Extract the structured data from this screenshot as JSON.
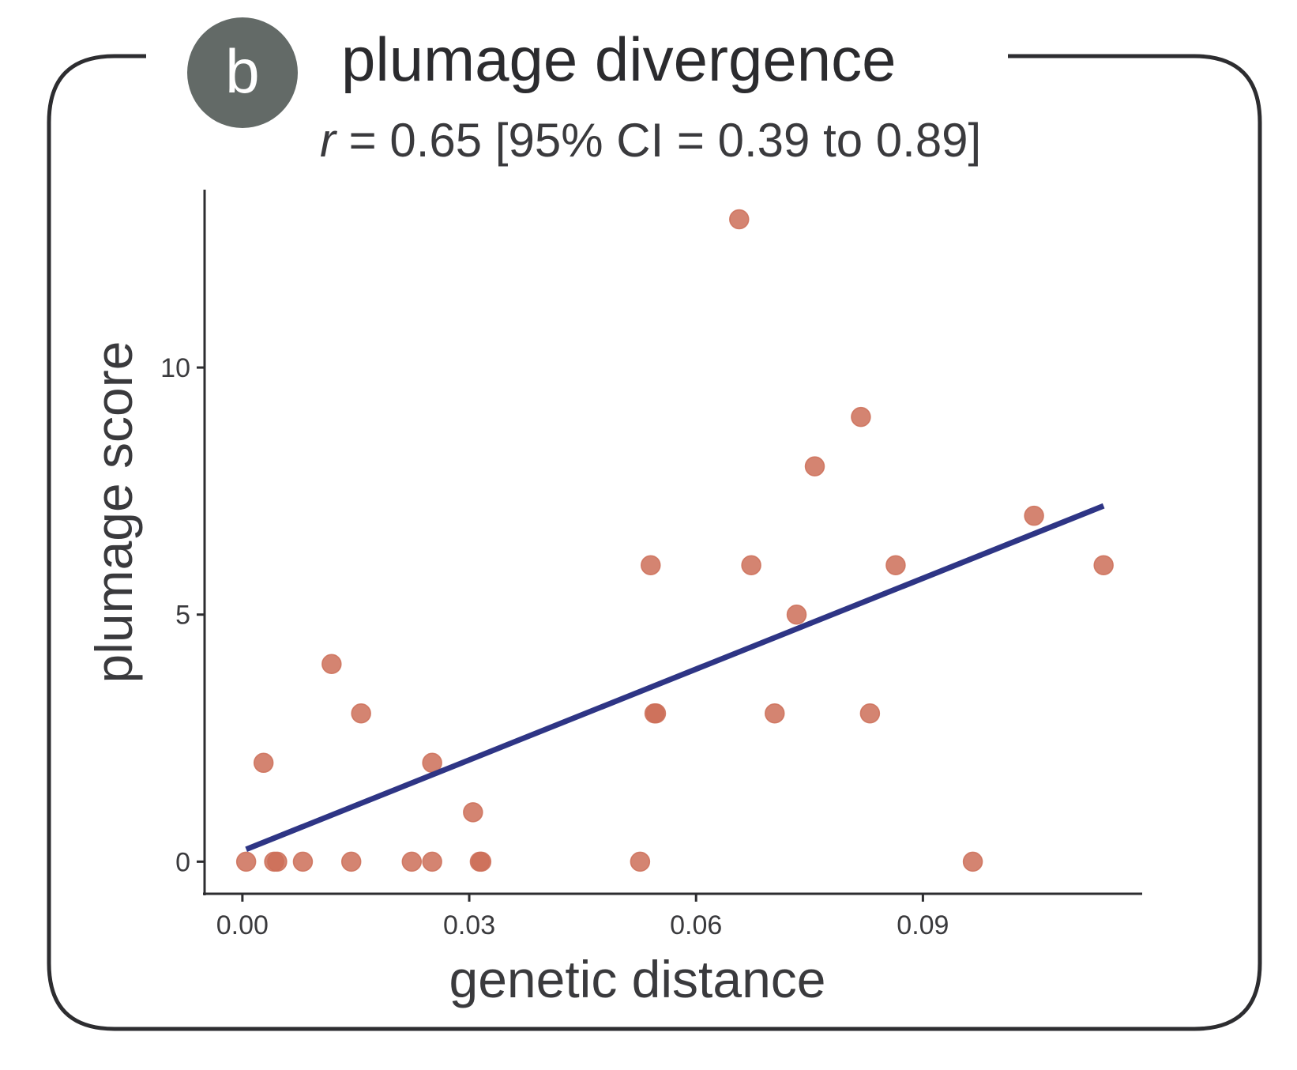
{
  "panel": {
    "badge_letter": "b",
    "title": "plumage divergence",
    "subtitle_r": "r",
    "subtitle_rest": " = 0.65 [95% CI = 0.39 to 0.89]"
  },
  "colors": {
    "frame": "#2d2d30",
    "badge": "#636a67",
    "point": "#cd6f58",
    "point_dark": "#c0473a",
    "fit_line": "#2e3585",
    "axis": "#2d2d30"
  },
  "chart_data": {
    "type": "scatter",
    "xlabel": "genetic distance",
    "ylabel": "plumage score",
    "xlim": [
      -0.005,
      0.119
    ],
    "ylim": [
      -0.65,
      13.6
    ],
    "xticks": [
      0.0,
      0.03,
      0.06,
      0.09
    ],
    "xtick_labels": [
      "0.00",
      "0.03",
      "0.06",
      "0.09"
    ],
    "yticks": [
      0,
      5,
      10
    ],
    "ytick_labels": [
      "0",
      "5",
      "10"
    ],
    "grid": false,
    "points": [
      {
        "x": 0.0005,
        "y": 0
      },
      {
        "x": 0.0028,
        "y": 2
      },
      {
        "x": 0.0042,
        "y": 0
      },
      {
        "x": 0.0046,
        "y": 0
      },
      {
        "x": 0.008,
        "y": 0
      },
      {
        "x": 0.0118,
        "y": 4
      },
      {
        "x": 0.0144,
        "y": 0
      },
      {
        "x": 0.0157,
        "y": 3
      },
      {
        "x": 0.0224,
        "y": 0
      },
      {
        "x": 0.0251,
        "y": 0
      },
      {
        "x": 0.0251,
        "y": 2
      },
      {
        "x": 0.0305,
        "y": 1
      },
      {
        "x": 0.0314,
        "y": 0
      },
      {
        "x": 0.0316,
        "y": 0
      },
      {
        "x": 0.0526,
        "y": 0
      },
      {
        "x": 0.054,
        "y": 6
      },
      {
        "x": 0.0545,
        "y": 3
      },
      {
        "x": 0.0547,
        "y": 3
      },
      {
        "x": 0.0657,
        "y": 13
      },
      {
        "x": 0.0673,
        "y": 6
      },
      {
        "x": 0.0704,
        "y": 3
      },
      {
        "x": 0.0733,
        "y": 5
      },
      {
        "x": 0.0757,
        "y": 8
      },
      {
        "x": 0.0818,
        "y": 9
      },
      {
        "x": 0.083,
        "y": 3
      },
      {
        "x": 0.0864,
        "y": 6
      },
      {
        "x": 0.0966,
        "y": 0
      },
      {
        "x": 0.1047,
        "y": 7
      },
      {
        "x": 0.1139,
        "y": 6
      }
    ],
    "fit_line": {
      "x": [
        0.0005,
        0.1139
      ],
      "y": [
        0.25,
        7.2
      ]
    }
  }
}
